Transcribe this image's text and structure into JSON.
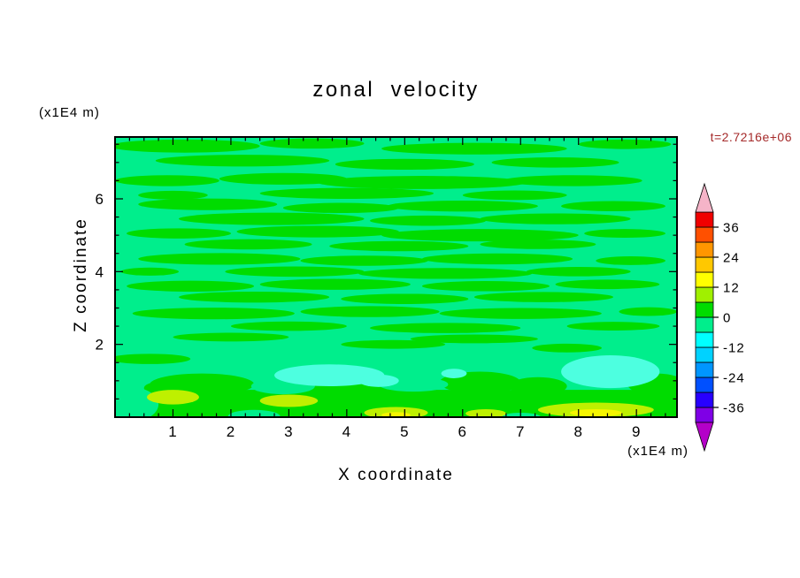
{
  "header": {
    "title": "zonal  velocity",
    "timestamp": "t=2.7216e+06"
  },
  "axes": {
    "x_label": "X coordinate",
    "y_label": "Z coordinate",
    "x_units": "(x1E4 m)",
    "y_units": "(x1E4 m)"
  },
  "colors": {
    "timestamp_color": "#A52A2A",
    "frame_color": "#000000",
    "background": "#ffffff"
  },
  "chart_data": {
    "type": "filled_contour",
    "title": "zonal velocity",
    "xlabel": "X coordinate",
    "ylabel": "Z coordinate",
    "x_units": "(x1E4 m)",
    "y_units": "(x1E4 m)",
    "time_annotation": "t=2.7216e+06",
    "xlim": [
      0,
      9.7
    ],
    "ylim": [
      0,
      7.7
    ],
    "x_ticks": [
      1,
      2,
      3,
      4,
      5,
      6,
      7,
      8,
      9
    ],
    "y_ticks": [
      2,
      4,
      6
    ],
    "x_minor_step": 0.25,
    "y_minor_step": 0.5,
    "grid": false,
    "legend_position": "right-colorbar",
    "colorbar": {
      "ticks": [
        36,
        24,
        12,
        0,
        -12,
        -24,
        -36
      ],
      "level_min": -42,
      "level_max": 42,
      "level_step": 6,
      "colors_bottom_to_top": [
        "#7F00E6",
        "#2800FF",
        "#0050FF",
        "#0096FF",
        "#00D2FF",
        "#00FFFF",
        "#00EE8C",
        "#00DC00",
        "#A0F000",
        "#FFFF00",
        "#FFC800",
        "#FF9600",
        "#FF5000",
        "#F00000"
      ],
      "under_arrow_color": "#B400C8",
      "over_arrow_color": "#F5B4C8"
    },
    "field": {
      "description": "Zonal velocity cross-section; mostly between -6 and 6 (spring-green background -6..0 with horizontal green 0..6 streaks). Bottom boundary layer (z<1) is a green band holding yellow-green 6..12 and yellow 12..18 maxima; cyan patches near z~1 reach -12..-6.",
      "background_color": "#00EE8C",
      "background_level_range": [
        -6,
        0
      ],
      "layers": [
        {
          "name": "green-streak",
          "level_range": [
            0,
            6
          ],
          "color": "#00DC00",
          "ellipses": [
            [
              1.2,
              7.45,
              1.3,
              0.18
            ],
            [
              3.4,
              7.52,
              0.9,
              0.14
            ],
            [
              6.2,
              7.38,
              1.6,
              0.16
            ],
            [
              8.8,
              7.5,
              0.8,
              0.13
            ],
            [
              2.2,
              7.05,
              1.5,
              0.16
            ],
            [
              5.0,
              6.95,
              1.2,
              0.15
            ],
            [
              7.6,
              7.0,
              1.1,
              0.14
            ],
            [
              0.9,
              6.5,
              0.9,
              0.15
            ],
            [
              2.9,
              6.55,
              1.1,
              0.16
            ],
            [
              5.3,
              6.45,
              1.8,
              0.18
            ],
            [
              7.9,
              6.5,
              1.2,
              0.15
            ],
            [
              4.0,
              6.15,
              1.5,
              0.15
            ],
            [
              6.9,
              6.1,
              0.9,
              0.13
            ],
            [
              1.0,
              6.1,
              0.6,
              0.12
            ],
            [
              1.6,
              5.85,
              1.2,
              0.16
            ],
            [
              3.9,
              5.75,
              1.0,
              0.14
            ],
            [
              6.0,
              5.8,
              1.3,
              0.15
            ],
            [
              8.6,
              5.8,
              0.9,
              0.14
            ],
            [
              2.7,
              5.45,
              1.6,
              0.17
            ],
            [
              5.4,
              5.4,
              1.0,
              0.14
            ],
            [
              7.6,
              5.45,
              1.3,
              0.15
            ],
            [
              1.1,
              5.05,
              0.9,
              0.14
            ],
            [
              3.5,
              5.1,
              1.4,
              0.16
            ],
            [
              6.3,
              5.0,
              1.7,
              0.17
            ],
            [
              8.8,
              5.05,
              0.7,
              0.12
            ],
            [
              2.3,
              4.75,
              1.1,
              0.14
            ],
            [
              4.9,
              4.7,
              1.2,
              0.14
            ],
            [
              7.3,
              4.75,
              1.0,
              0.13
            ],
            [
              1.8,
              4.35,
              1.4,
              0.16
            ],
            [
              4.3,
              4.3,
              1.1,
              0.14
            ],
            [
              6.6,
              4.35,
              1.3,
              0.15
            ],
            [
              8.9,
              4.3,
              0.6,
              0.12
            ],
            [
              3.1,
              4.0,
              1.2,
              0.14
            ],
            [
              5.7,
              3.95,
              1.5,
              0.15
            ],
            [
              8.0,
              4.0,
              0.9,
              0.13
            ],
            [
              0.6,
              4.0,
              0.5,
              0.11
            ],
            [
              1.3,
              3.6,
              1.1,
              0.15
            ],
            [
              3.8,
              3.65,
              1.3,
              0.15
            ],
            [
              6.4,
              3.6,
              1.1,
              0.14
            ],
            [
              8.5,
              3.65,
              0.9,
              0.13
            ],
            [
              2.4,
              3.3,
              1.3,
              0.15
            ],
            [
              5.0,
              3.25,
              1.1,
              0.14
            ],
            [
              7.4,
              3.3,
              1.2,
              0.14
            ],
            [
              1.7,
              2.85,
              1.4,
              0.16
            ],
            [
              4.4,
              2.9,
              1.2,
              0.15
            ],
            [
              7.0,
              2.85,
              1.4,
              0.15
            ],
            [
              9.2,
              2.9,
              0.5,
              0.12
            ],
            [
              3.0,
              2.5,
              1.0,
              0.13
            ],
            [
              5.7,
              2.45,
              1.3,
              0.14
            ],
            [
              8.6,
              2.5,
              0.8,
              0.12
            ],
            [
              2.0,
              2.2,
              1.0,
              0.12
            ],
            [
              6.2,
              2.15,
              1.1,
              0.12
            ],
            [
              0.6,
              1.6,
              0.7,
              0.14
            ],
            [
              4.8,
              2.0,
              0.9,
              0.12
            ],
            [
              7.8,
              1.9,
              0.6,
              0.12
            ]
          ]
        },
        {
          "name": "green-bottom-band",
          "level_range": [
            0,
            6
          ],
          "color": "#00DC00",
          "rects": [
            [
              0,
              0,
              9.7,
              0.75
            ]
          ],
          "ellipses": [
            [
              1.5,
              0.9,
              0.9,
              0.3
            ],
            [
              4.2,
              0.8,
              1.2,
              0.28
            ],
            [
              6.3,
              0.95,
              0.7,
              0.3
            ],
            [
              7.3,
              0.85,
              0.5,
              0.25
            ],
            [
              9.35,
              0.9,
              0.5,
              0.3
            ],
            [
              0.9,
              0.8,
              0.4,
              0.2
            ]
          ]
        },
        {
          "name": "spring-green-notch",
          "level_range": [
            -6,
            0
          ],
          "color": "#00EE8C",
          "ellipses": [
            [
              0.2,
              0.35,
              0.55,
              0.5
            ],
            [
              2.9,
              0.85,
              0.55,
              0.22
            ],
            [
              5.15,
              0.9,
              0.6,
              0.2
            ],
            [
              2.4,
              0.02,
              0.45,
              0.18
            ],
            [
              7.0,
              0.0,
              0.35,
              0.12
            ]
          ]
        },
        {
          "name": "cyan-patch",
          "level_range": [
            -12,
            -6
          ],
          "color": "#4DFFE0",
          "ellipses": [
            [
              3.7,
              1.15,
              0.95,
              0.3
            ],
            [
              4.55,
              1.0,
              0.35,
              0.17
            ],
            [
              8.55,
              1.25,
              0.85,
              0.45
            ],
            [
              5.85,
              1.2,
              0.22,
              0.13
            ]
          ]
        },
        {
          "name": "yellow-green-patch",
          "level_range": [
            6,
            12
          ],
          "color": "#BEF000",
          "ellipses": [
            [
              1.0,
              0.55,
              0.45,
              0.2
            ],
            [
              3.0,
              0.45,
              0.5,
              0.17
            ],
            [
              4.85,
              0.12,
              0.55,
              0.16
            ],
            [
              6.4,
              0.1,
              0.35,
              0.12
            ],
            [
              8.3,
              0.2,
              1.0,
              0.2
            ]
          ]
        },
        {
          "name": "yellow-patch",
          "level_range": [
            12,
            18
          ],
          "color": "#F5F500",
          "ellipses": [
            [
              8.3,
              0.12,
              0.45,
              0.1
            ],
            [
              4.85,
              0.06,
              0.25,
              0.08
            ]
          ]
        }
      ]
    }
  }
}
